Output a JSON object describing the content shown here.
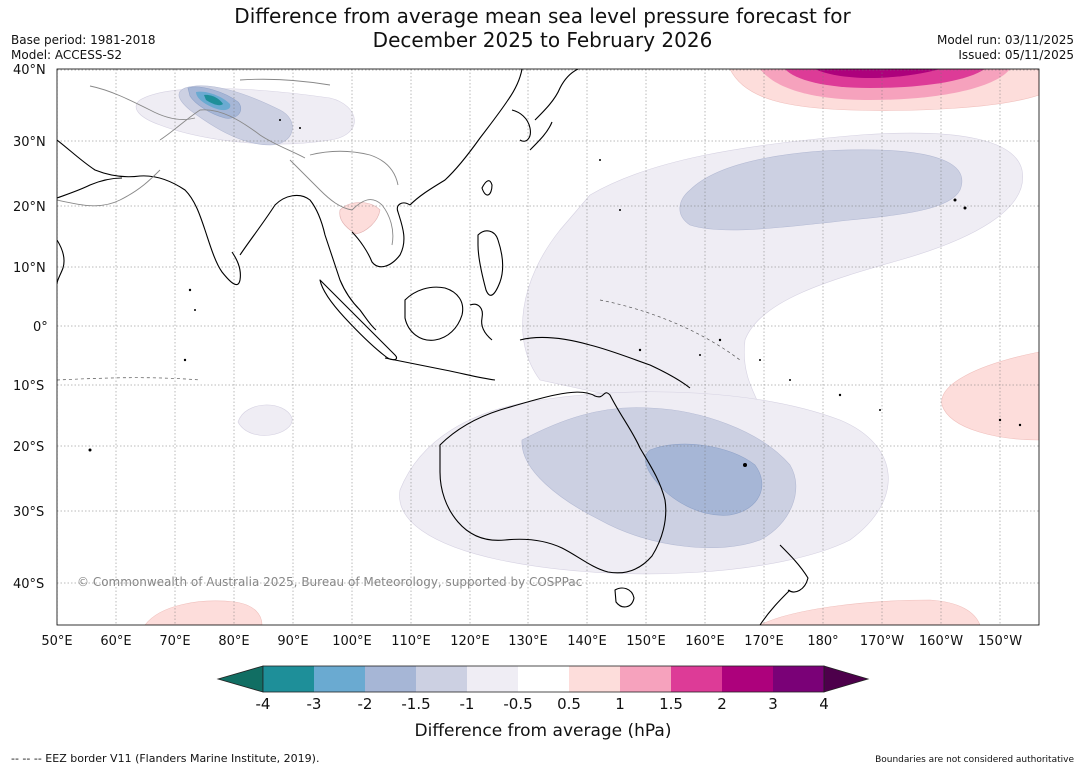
{
  "title": {
    "line1": "Difference from average mean sea level pressure forecast for",
    "line2": "December 2025 to February 2026"
  },
  "meta": {
    "base_period": "Base period: 1981-2018",
    "model": "Model: ACCESS-S2",
    "model_run": "Model run: 03/11/2025",
    "issued": "Issued: 05/11/2025"
  },
  "map": {
    "lat_labels": [
      "40°N",
      "30°N",
      "20°N",
      "10°N",
      "0°",
      "10°S",
      "20°S",
      "30°S",
      "40°S"
    ],
    "lon_labels": [
      "50°E",
      "60°E",
      "70°E",
      "80°E",
      "90°E",
      "100°E",
      "110°E",
      "120°E",
      "130°E",
      "140°E",
      "150°E",
      "160°E",
      "170°E",
      "180°",
      "170°W",
      "160°W",
      "150°W"
    ],
    "copyright": "© Commonwealth of Australia 2025, Bureau of Meteorology, supported by COSPPac",
    "colors": {
      "land_outline": "#000000",
      "border": "#888888",
      "grid": "#777777"
    }
  },
  "colorbar": {
    "tick_labels": [
      "-4",
      "-3",
      "-2",
      "-1.5",
      "-1",
      "-0.5",
      "0.5",
      "1",
      "1.5",
      "2",
      "3",
      "4"
    ],
    "colors": [
      "#116e63",
      "#1e8f99",
      "#6aaad1",
      "#a6b6d6",
      "#ccd0e2",
      "#efedf4",
      "#ffffff",
      "#fddddb",
      "#f6a2bd",
      "#dd3b97",
      "#ad017c",
      "#7a0177",
      "#4d004b"
    ],
    "title": "Difference from average (hPa)"
  },
  "footer": {
    "eez": "--  --  -- EEZ border V11 (Flanders Marine Institute, 2019).",
    "boundaries": "Boundaries are not considered authoritative"
  }
}
